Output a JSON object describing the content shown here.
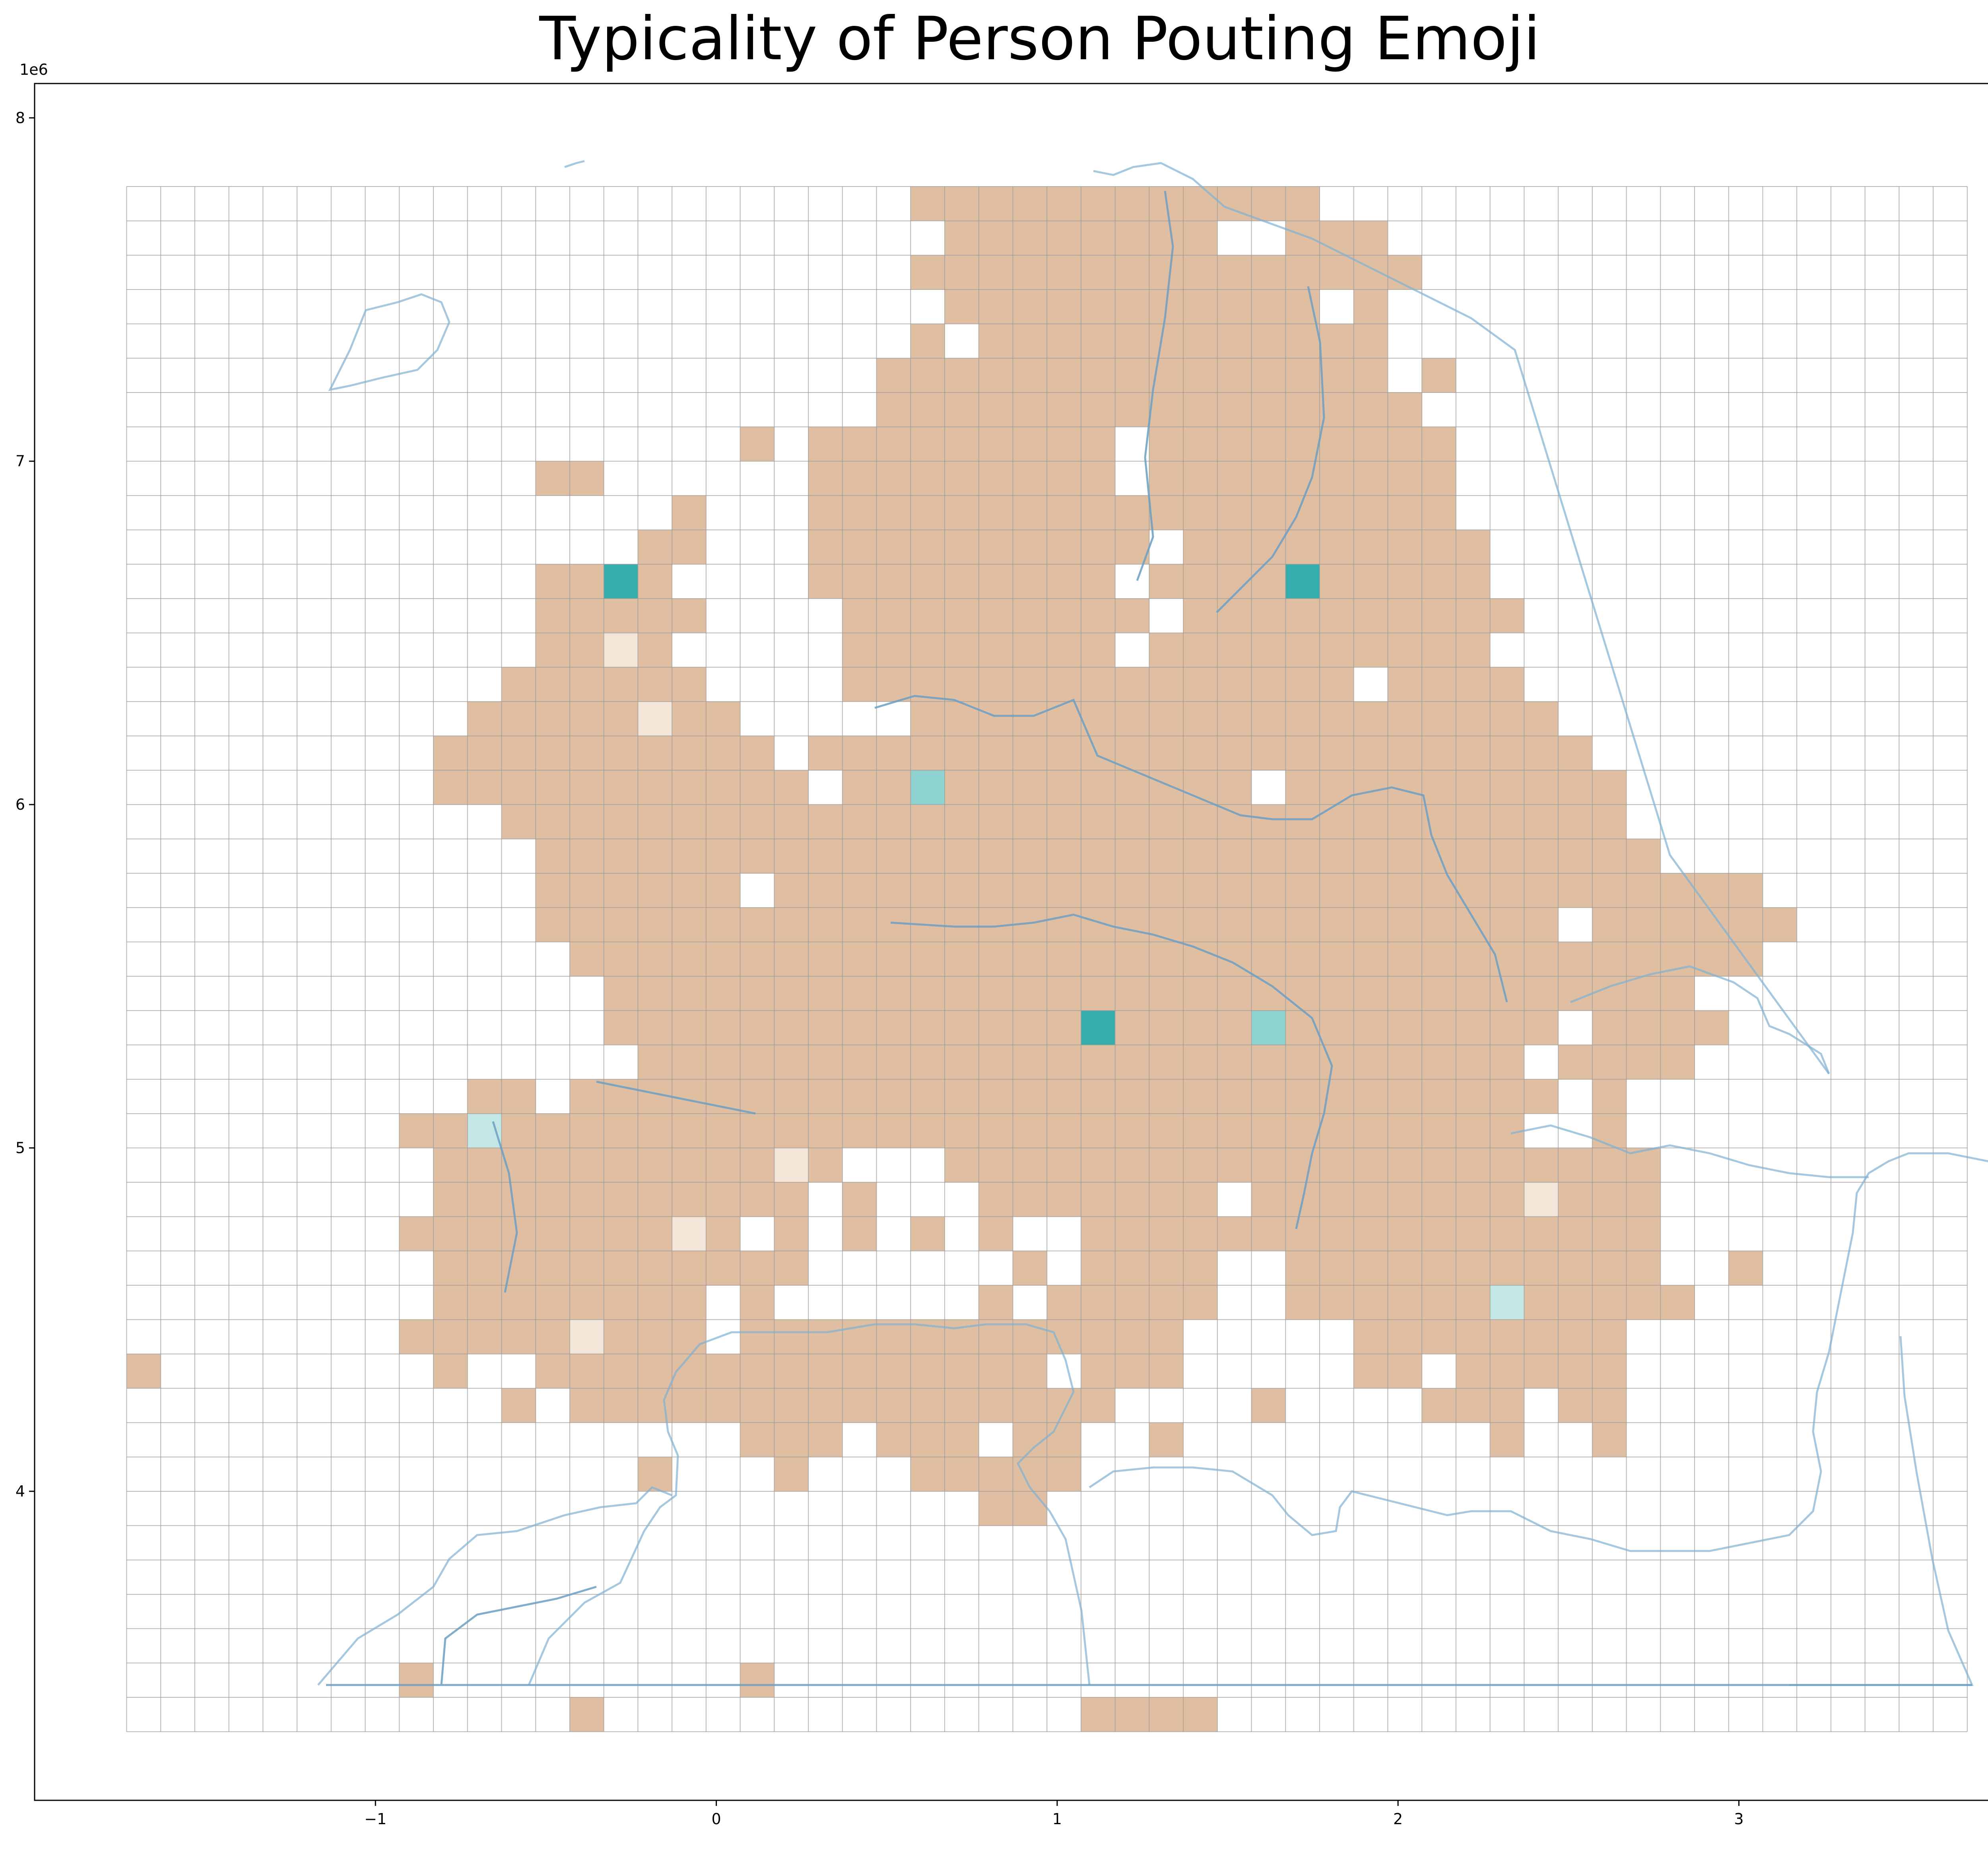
{
  "title": "Typicality of Person Pouting Emoji",
  "chart_data": {
    "type": "heatmap",
    "title": "Typicality of Person Pouting Emoji",
    "xlabel": "",
    "ylabel": "",
    "xlim": [
      -2.0,
      3.9
    ],
    "ylim": [
      3.1,
      8.1
    ],
    "x_ticks": [
      "−1",
      "0",
      "1",
      "2",
      "3"
    ],
    "x_tick_values": [
      -1,
      0,
      1,
      2,
      3
    ],
    "y_ticks": [
      "4",
      "5",
      "6",
      "7",
      "8"
    ],
    "y_tick_values": [
      4,
      5,
      6,
      7,
      8
    ],
    "x_offset_label": "1e6",
    "y_offset_label": "1e6",
    "grid": {
      "x0": -1.73,
      "x1": 3.67,
      "y0": 3.3,
      "y1": 7.8,
      "cell": 0.1
    },
    "colors": {
      "base": "#e0bea1",
      "mid": "#8ed3d1",
      "high": "#34adad",
      "light": "#c3e7e6",
      "pale": "#f4e5d9",
      "grid_line": "#9a9a9a",
      "coast": "#7fb0d3"
    },
    "land_rows": [
      {
        "y": 7.75,
        "ranges": [
          [
            0.6,
            0.7
          ],
          [
            0.8,
            1.7
          ]
        ]
      },
      {
        "y": 7.65,
        "ranges": [
          [
            0.7,
            1.5
          ],
          [
            1.7,
            1.9
          ]
        ]
      },
      {
        "y": 7.55,
        "ranges": [
          [
            0.6,
            0.7
          ],
          [
            0.8,
            2.0
          ]
        ]
      },
      {
        "y": 7.45,
        "ranges": [
          [
            0.7,
            1.7
          ],
          [
            1.8,
            1.9
          ]
        ]
      },
      {
        "y": 7.35,
        "ranges": [
          [
            0.6,
            1.9
          ]
        ]
      },
      {
        "y": 7.25,
        "ranges": [
          [
            0.5,
            1.9
          ],
          [
            2.0,
            2.1
          ]
        ]
      },
      {
        "y": 7.15,
        "ranges": [
          [
            0.5,
            2.0
          ],
          [
            2.1,
            2.1
          ]
        ]
      },
      {
        "y": 7.05,
        "ranges": [
          [
            0.1,
            0.1
          ],
          [
            0.3,
            1.1
          ],
          [
            1.2,
            2.1
          ]
        ]
      },
      {
        "y": 6.95,
        "ranges": [
          [
            -0.5,
            -0.4
          ],
          [
            0.3,
            1.1
          ],
          [
            1.2,
            2.1
          ]
        ]
      },
      {
        "y": 6.85,
        "ranges": [
          [
            -0.1,
            -0.1
          ],
          [
            0.3,
            2.1
          ]
        ]
      },
      {
        "y": 6.75,
        "ranges": [
          [
            -0.2,
            -0.1
          ],
          [
            0.3,
            2.2
          ]
        ]
      },
      {
        "y": 6.65,
        "ranges": [
          [
            -0.5,
            -0.2
          ],
          [
            0.3,
            1.2
          ],
          [
            1.3,
            2.2
          ]
        ]
      },
      {
        "y": 6.55,
        "ranges": [
          [
            -0.5,
            -0.1
          ],
          [
            0.4,
            1.1
          ],
          [
            1.2,
            2.3
          ]
        ]
      },
      {
        "y": 6.45,
        "ranges": [
          [
            -0.5,
            -0.2
          ],
          [
            0.4,
            1.1
          ],
          [
            1.2,
            2.2
          ]
        ]
      },
      {
        "y": 6.35,
        "ranges": [
          [
            -0.6,
            -0.1
          ],
          [
            0.4,
            1.1
          ],
          [
            1.2,
            2.3
          ]
        ]
      },
      {
        "y": 6.25,
        "ranges": [
          [
            -0.7,
            0.0
          ],
          [
            0.6,
            2.4
          ]
        ]
      },
      {
        "y": 6.15,
        "ranges": [
          [
            -0.8,
            0.1
          ],
          [
            0.3,
            2.5
          ]
        ]
      },
      {
        "y": 6.05,
        "ranges": [
          [
            -0.8,
            0.2
          ],
          [
            0.4,
            2.6
          ]
        ]
      },
      {
        "y": 5.95,
        "ranges": [
          [
            -0.6,
            0.2
          ],
          [
            0.3,
            2.6
          ]
        ]
      },
      {
        "y": 5.85,
        "ranges": [
          [
            -0.5,
            2.7
          ]
        ]
      },
      {
        "y": 5.75,
        "ranges": [
          [
            -0.5,
            3.0
          ]
        ]
      },
      {
        "y": 5.65,
        "ranges": [
          [
            -0.5,
            3.1
          ]
        ]
      },
      {
        "y": 5.55,
        "ranges": [
          [
            -0.4,
            3.0
          ]
        ]
      },
      {
        "y": 5.45,
        "ranges": [
          [
            -0.3,
            2.9
          ]
        ]
      },
      {
        "y": 5.35,
        "ranges": [
          [
            -0.3,
            2.9
          ]
        ]
      },
      {
        "y": 5.25,
        "ranges": [
          [
            -0.2,
            2.8
          ]
        ]
      },
      {
        "y": 5.15,
        "ranges": [
          [
            -0.7,
            2.6
          ]
        ]
      },
      {
        "y": 5.05,
        "ranges": [
          [
            -0.9,
            2.6
          ]
        ]
      },
      {
        "y": 4.95,
        "ranges": [
          [
            -0.9,
            2.7
          ]
        ]
      },
      {
        "y": 4.85,
        "ranges": [
          [
            -0.8,
            2.7
          ]
        ]
      },
      {
        "y": 4.75,
        "ranges": [
          [
            -0.9,
            2.7
          ]
        ]
      },
      {
        "y": 4.65,
        "ranges": [
          [
            -0.8,
            2.7
          ],
          [
            3.0,
            3.0
          ]
        ]
      },
      {
        "y": 4.55,
        "ranges": [
          [
            -0.8,
            2.8
          ]
        ]
      },
      {
        "y": 4.45,
        "ranges": [
          [
            -0.9,
            2.7
          ]
        ]
      },
      {
        "y": 4.35,
        "ranges": [
          [
            -1.7,
            -1.7
          ],
          [
            -0.8,
            2.8
          ]
        ]
      },
      {
        "y": 4.25,
        "ranges": [
          [
            -0.6,
            2.6
          ]
        ]
      },
      {
        "y": 4.15,
        "ranges": [
          [
            -0.6,
            2.4
          ],
          [
            2.6,
            2.6
          ]
        ]
      },
      {
        "y": 4.05,
        "ranges": [
          [
            -0.2,
            1.0
          ]
        ]
      },
      {
        "y": 3.95,
        "ranges": [
          [
            0.8,
            0.9
          ]
        ]
      },
      {
        "y": 3.45,
        "ranges": [
          [
            -0.9,
            -0.9
          ],
          [
            0.1,
            0.1
          ]
        ]
      },
      {
        "y": 3.35,
        "ranges": [
          [
            -0.4,
            -0.4
          ],
          [
            1.1,
            1.4
          ]
        ]
      }
    ],
    "empty_cells": [
      [
        0.6,
        7.65
      ],
      [
        0.6,
        7.45
      ],
      [
        1.5,
        7.65
      ],
      [
        0.7,
        7.35
      ],
      [
        1.8,
        7.45
      ],
      [
        2.0,
        7.25
      ],
      [
        2.1,
        7.15
      ],
      [
        1.2,
        7.05
      ],
      [
        1.2,
        6.95
      ],
      [
        1.3,
        6.75
      ],
      [
        1.2,
        6.65
      ],
      [
        1.3,
        6.55
      ],
      [
        1.2,
        6.45
      ],
      [
        1.9,
        6.35
      ],
      [
        1.6,
        6.05
      ],
      [
        0.1,
        5.75
      ],
      [
        2.5,
        5.65
      ],
      [
        2.9,
        5.45
      ],
      [
        2.5,
        5.35
      ],
      [
        2.4,
        5.25
      ],
      [
        2.5,
        5.15
      ],
      [
        2.4,
        5.05
      ],
      [
        2.5,
        5.05
      ],
      [
        -0.4,
        5.35
      ],
      [
        -0.4,
        5.25
      ],
      [
        -0.3,
        5.25
      ],
      [
        -0.5,
        5.15
      ],
      [
        0.4,
        4.95
      ],
      [
        0.5,
        4.95
      ],
      [
        0.6,
        4.95
      ],
      [
        1.5,
        4.85
      ],
      [
        0.3,
        4.85
      ],
      [
        0.5,
        4.85
      ],
      [
        0.6,
        4.85
      ],
      [
        0.7,
        4.85
      ],
      [
        0.1,
        4.75
      ],
      [
        0.3,
        4.75
      ],
      [
        0.5,
        4.75
      ],
      [
        0.7,
        4.75
      ],
      [
        0.9,
        4.75
      ],
      [
        1.0,
        4.75
      ],
      [
        0.3,
        4.65
      ],
      [
        0.4,
        4.65
      ],
      [
        0.5,
        4.65
      ],
      [
        0.6,
        4.65
      ],
      [
        0.7,
        4.65
      ],
      [
        0.8,
        4.65
      ],
      [
        1.0,
        4.65
      ],
      [
        1.5,
        4.65
      ],
      [
        1.6,
        4.65
      ],
      [
        2.9,
        4.65
      ],
      [
        0.0,
        4.55
      ],
      [
        0.2,
        4.55
      ],
      [
        0.3,
        4.55
      ],
      [
        0.4,
        4.55
      ],
      [
        0.5,
        4.55
      ],
      [
        0.6,
        4.55
      ],
      [
        0.7,
        4.55
      ],
      [
        0.9,
        4.55
      ],
      [
        1.5,
        4.55
      ],
      [
        1.6,
        4.55
      ],
      [
        0.0,
        4.45
      ],
      [
        1.4,
        4.45
      ],
      [
        1.5,
        4.45
      ],
      [
        1.6,
        4.45
      ],
      [
        1.7,
        4.45
      ],
      [
        1.8,
        4.45
      ],
      [
        2.7,
        4.45
      ],
      [
        1.0,
        4.35
      ],
      [
        1.4,
        4.35
      ],
      [
        1.5,
        4.35
      ],
      [
        1.6,
        4.35
      ],
      [
        1.7,
        4.35
      ],
      [
        1.8,
        4.35
      ],
      [
        2.1,
        4.35
      ],
      [
        2.7,
        4.35
      ],
      [
        2.8,
        4.35
      ],
      [
        1.2,
        4.25
      ],
      [
        1.3,
        4.25
      ],
      [
        1.4,
        4.25
      ],
      [
        1.5,
        4.25
      ],
      [
        1.7,
        4.25
      ],
      [
        1.8,
        4.25
      ],
      [
        1.9,
        4.25
      ],
      [
        2.0,
        4.25
      ],
      [
        2.4,
        4.25
      ],
      [
        0.4,
        4.15
      ],
      [
        0.8,
        4.15
      ],
      [
        1.1,
        4.15
      ],
      [
        1.2,
        4.15
      ],
      [
        1.4,
        4.15
      ],
      [
        1.5,
        4.15
      ],
      [
        1.6,
        4.15
      ],
      [
        1.7,
        4.15
      ],
      [
        1.8,
        4.15
      ],
      [
        1.9,
        4.15
      ],
      [
        2.0,
        4.15
      ],
      [
        2.1,
        4.15
      ],
      [
        2.2,
        4.15
      ],
      [
        2.4,
        4.15
      ],
      [
        0.4,
        4.05
      ],
      [
        0.5,
        4.05
      ],
      [
        -0.1,
        4.05
      ],
      [
        0.0,
        4.05
      ],
      [
        0.1,
        4.05
      ],
      [
        0.3,
        4.05
      ],
      [
        -0.5,
        4.25
      ],
      [
        -0.4,
        4.15
      ],
      [
        -0.3,
        4.15
      ],
      [
        -0.2,
        4.15
      ],
      [
        -0.1,
        4.15
      ],
      [
        0.0,
        4.15
      ],
      [
        -0.5,
        4.15
      ],
      [
        -0.6,
        4.15
      ],
      [
        -0.9,
        4.55
      ],
      [
        -0.9,
        4.35
      ],
      [
        -0.9,
        4.85
      ],
      [
        -0.9,
        4.95
      ],
      [
        -0.9,
        4.65
      ],
      [
        -0.7,
        4.35
      ],
      [
        -0.7,
        4.25
      ],
      [
        -0.6,
        4.35
      ]
    ],
    "highlight_cells": [
      {
        "x": -0.3,
        "y": 6.65,
        "level": "high"
      },
      {
        "x": 1.7,
        "y": 6.65,
        "level": "high"
      },
      {
        "x": 1.1,
        "y": 5.35,
        "level": "high"
      },
      {
        "x": 0.6,
        "y": 6.05,
        "level": "mid"
      },
      {
        "x": 1.6,
        "y": 5.35,
        "level": "mid"
      },
      {
        "x": -0.7,
        "y": 5.05,
        "level": "light"
      },
      {
        "x": 2.3,
        "y": 4.55,
        "level": "light"
      },
      {
        "x": -0.3,
        "y": 6.45,
        "level": "pale"
      },
      {
        "x": -0.2,
        "y": 6.25,
        "level": "pale"
      },
      {
        "x": 0.2,
        "y": 4.95,
        "level": "pale"
      },
      {
        "x": -0.1,
        "y": 4.75,
        "level": "pale"
      },
      {
        "x": 2.4,
        "y": 4.85,
        "level": "pale"
      },
      {
        "x": -0.4,
        "y": 4.45,
        "level": "pale"
      }
    ]
  }
}
